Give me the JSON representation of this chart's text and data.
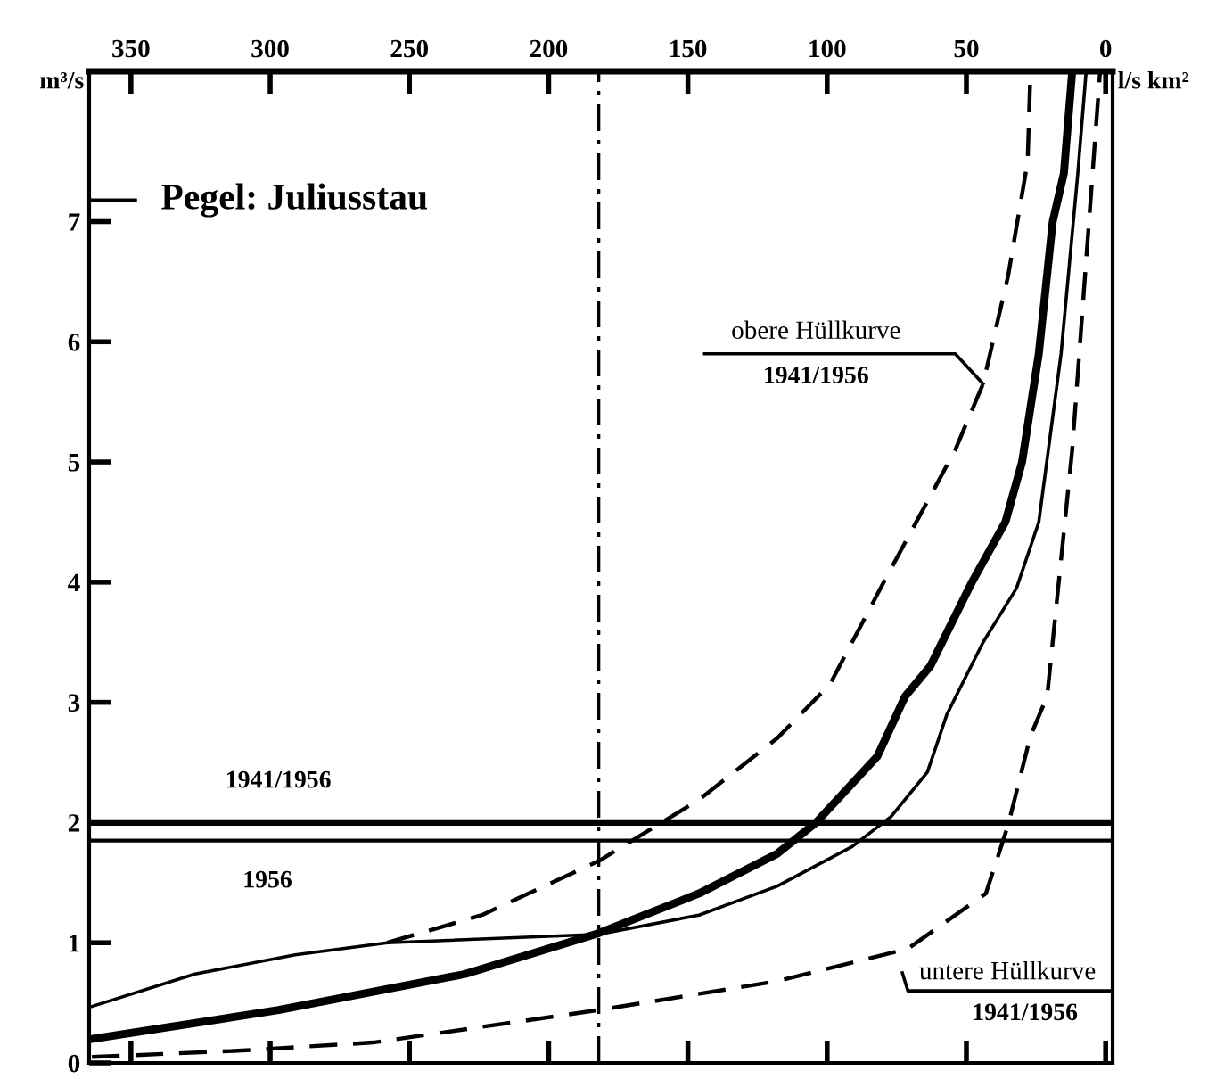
{
  "chart_data": {
    "type": "line",
    "title": "Pegel: Juliusstau",
    "xlabel": "l/s km²",
    "ylabel": "m³/s",
    "xlim": [
      365,
      -2.5
    ],
    "xticks": [
      350,
      300,
      250,
      200,
      150,
      100,
      50,
      0
    ],
    "ylim": [
      0,
      8.25
    ],
    "yticks": [
      0,
      1,
      2,
      3,
      4,
      5,
      6,
      7
    ],
    "series": [
      {
        "color": "#000000",
        "line_style": "solid",
        "x": [
          364,
          297,
          230,
          182,
          146,
          118,
          104,
          82,
          72,
          63,
          48,
          36,
          30,
          24,
          19,
          15,
          12
        ],
        "values": [
          0.2,
          0.44,
          0.74,
          1.08,
          1.41,
          1.74,
          2.0,
          2.55,
          3.05,
          3.3,
          4.0,
          4.5,
          5.0,
          5.9,
          7.0,
          7.4,
          8.25
        ]
      },
      {
        "color": "#000000",
        "line_style": "solid",
        "x": [
          364,
          327,
          291,
          258,
          182,
          146,
          118,
          91,
          77,
          64,
          57,
          44,
          32,
          24,
          16,
          10,
          7
        ],
        "values": [
          0.47,
          0.74,
          0.9,
          1.0,
          1.07,
          1.23,
          1.47,
          1.8,
          2.05,
          2.42,
          2.9,
          3.5,
          3.95,
          4.5,
          5.9,
          7.4,
          8.25
        ]
      },
      {
        "color": "#000000",
        "line_style": "dashed",
        "x": [
          258,
          224,
          182,
          146,
          118,
          99,
          79,
          54,
          44,
          35,
          28,
          27
        ],
        "values": [
          1.0,
          1.23,
          1.68,
          2.19,
          2.7,
          3.15,
          4.03,
          5.1,
          5.65,
          6.55,
          7.5,
          8.25
        ]
      },
      {
        "color": "#000000",
        "line_style": "dashed",
        "x": [
          364,
          313,
          263,
          182,
          118,
          71,
          43,
          35,
          27,
          21,
          12,
          2
        ],
        "values": [
          0.05,
          0.1,
          0.17,
          0.44,
          0.68,
          0.95,
          1.41,
          1.98,
          2.72,
          3.05,
          5.1,
          8.25
        ]
      }
    ],
    "ref_lines": [
      {
        "axis": "y",
        "value": 2.0,
        "label": null,
        "line_style": "solid",
        "color": "#000000"
      },
      {
        "axis": "y",
        "value": 1.85,
        "label": null,
        "line_style": "solid",
        "color": "#000000"
      },
      {
        "axis": "x",
        "value": 182,
        "label": null,
        "line_style": "dashdot",
        "color": "#000000"
      }
    ],
    "annotations": [
      {
        "text": "obere Hüllkurve\n1941/1956",
        "x": 44,
        "y": 5.65
      },
      {
        "text": "untere Hüllkurve\n1941/1956",
        "x": 71,
        "y": 0.95
      },
      "1941/1956",
      "1956"
    ],
    "grid": false,
    "legend": false
  }
}
